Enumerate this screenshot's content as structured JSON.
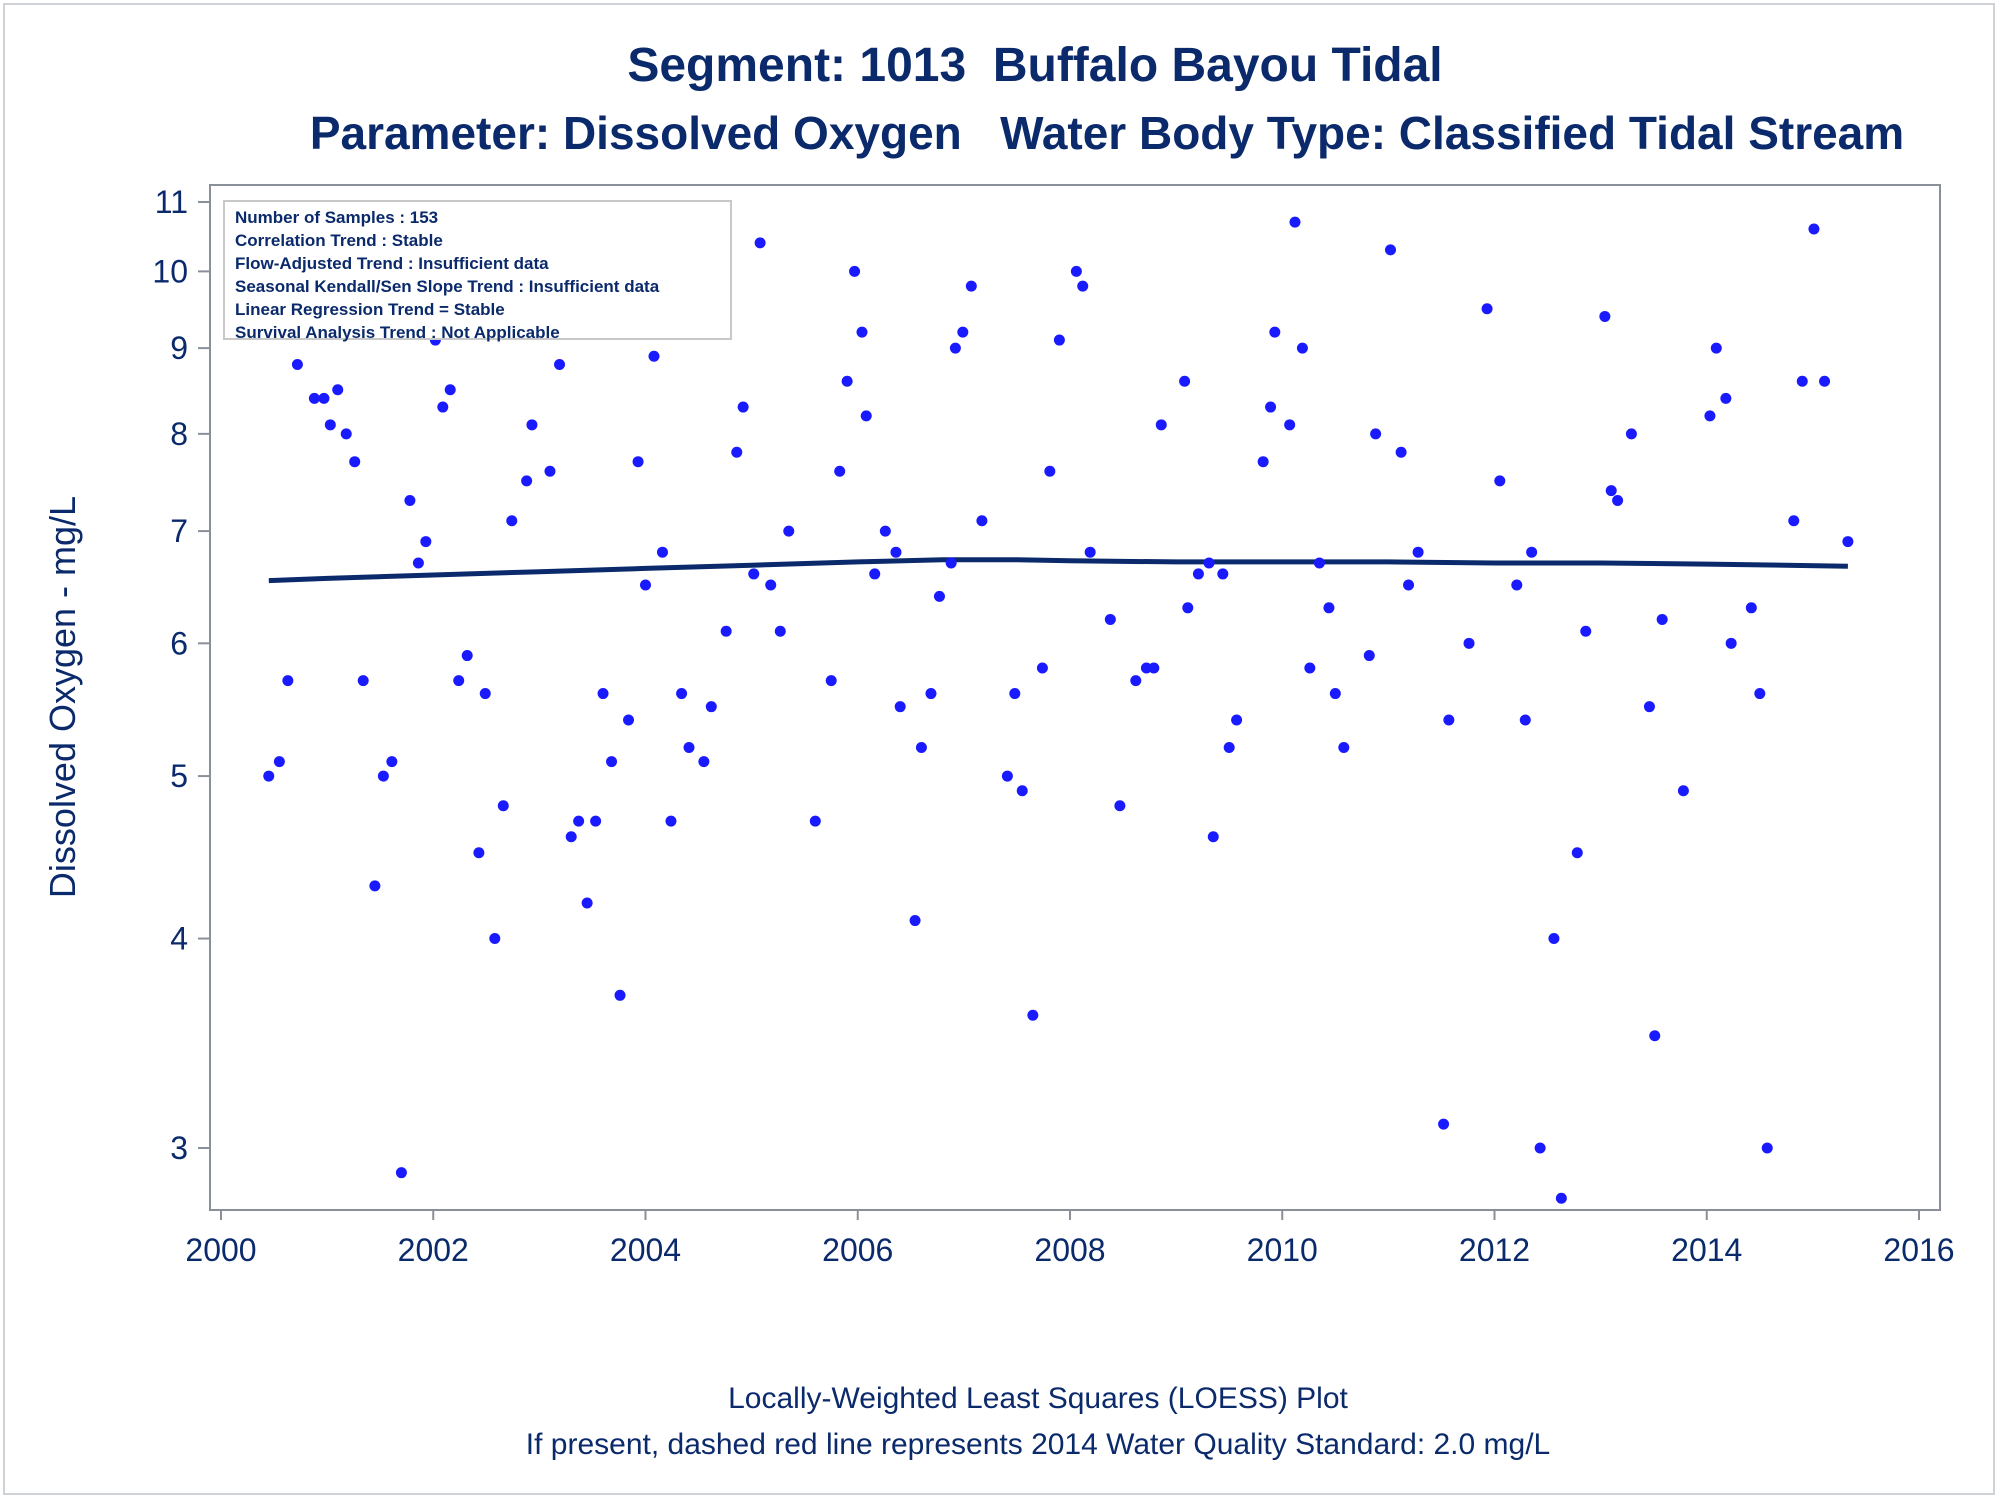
{
  "title": "Segment: 1013  Buffalo Bayou Tidal",
  "subtitle": "Parameter: Dissolved Oxygen   Water Body Type: Classified Tidal Stream",
  "footer": {
    "line1": "Locally-Weighted Least Squares (LOESS) Plot",
    "line2": "If present, dashed red line represents 2014 Water Quality Standard: 2.0 mg/L"
  },
  "stats": [
    "Number of Samples : 153",
    "Correlation Trend : Stable",
    "Flow-Adjusted Trend : Insufficient data",
    "Seasonal Kendall/Sen Slope Trend : Insufficient data",
    "Linear Regression Trend = Stable",
    "Survival Analysis Trend : Not Applicable"
  ],
  "colors": {
    "text": "#0b2a6b",
    "points": "#1a1aff",
    "loess": "#0b2a6b",
    "axis": "#8a9099"
  },
  "chart_data": {
    "type": "scatter",
    "ylabel": "Dissolved Oxygen - mg/L",
    "xlabel": "",
    "y_scale": "log",
    "xlim": [
      2000,
      2016
    ],
    "ylim": [
      2.8,
      11
    ],
    "x_ticks": [
      2000,
      2002,
      2004,
      2006,
      2008,
      2010,
      2012,
      2014,
      2016
    ],
    "y_ticks": [
      3,
      4,
      5,
      6,
      7,
      8,
      9,
      10,
      11
    ],
    "grid": false,
    "series": [
      {
        "type": "scatter",
        "points": [
          [
            2000.45,
            5.0
          ],
          [
            2000.55,
            5.1
          ],
          [
            2000.63,
            5.7
          ],
          [
            2000.72,
            8.8
          ],
          [
            2000.78,
            10.0
          ],
          [
            2000.88,
            8.4
          ],
          [
            2000.97,
            8.4
          ],
          [
            2001.03,
            8.1
          ],
          [
            2001.1,
            8.5
          ],
          [
            2001.18,
            8.0
          ],
          [
            2001.26,
            7.7
          ],
          [
            2001.34,
            5.7
          ],
          [
            2001.45,
            4.3
          ],
          [
            2001.53,
            5.0
          ],
          [
            2001.61,
            5.1
          ],
          [
            2001.7,
            2.9
          ],
          [
            2001.78,
            7.3
          ],
          [
            2001.86,
            6.7
          ],
          [
            2001.93,
            6.9
          ],
          [
            2002.02,
            9.1
          ],
          [
            2002.09,
            8.3
          ],
          [
            2002.16,
            8.5
          ],
          [
            2002.24,
            5.7
          ],
          [
            2002.32,
            5.9
          ],
          [
            2002.43,
            4.5
          ],
          [
            2002.49,
            5.6
          ],
          [
            2002.58,
            4.0
          ],
          [
            2002.66,
            4.8
          ],
          [
            2002.74,
            7.1
          ],
          [
            2002.88,
            7.5
          ],
          [
            2002.93,
            8.1
          ],
          [
            2003.05,
            9.4
          ],
          [
            2003.1,
            7.6
          ],
          [
            2003.19,
            8.8
          ],
          [
            2003.3,
            4.6
          ],
          [
            2003.37,
            4.7
          ],
          [
            2003.45,
            4.2
          ],
          [
            2003.53,
            4.7
          ],
          [
            2003.6,
            5.6
          ],
          [
            2003.68,
            5.1
          ],
          [
            2003.76,
            3.7
          ],
          [
            2003.84,
            5.4
          ],
          [
            2003.93,
            7.7
          ],
          [
            2004.0,
            6.5
          ],
          [
            2004.08,
            8.9
          ],
          [
            2004.16,
            6.8
          ],
          [
            2004.24,
            4.7
          ],
          [
            2004.34,
            5.6
          ],
          [
            2004.41,
            5.2
          ],
          [
            2004.55,
            5.1
          ],
          [
            2004.62,
            5.5
          ],
          [
            2004.76,
            6.1
          ],
          [
            2004.86,
            7.8
          ],
          [
            2004.92,
            8.3
          ],
          [
            2005.02,
            6.6
          ],
          [
            2005.08,
            10.4
          ],
          [
            2005.18,
            6.5
          ],
          [
            2005.27,
            6.1
          ],
          [
            2005.35,
            7.0
          ],
          [
            2005.6,
            4.7
          ],
          [
            2005.75,
            5.7
          ],
          [
            2005.83,
            7.6
          ],
          [
            2005.9,
            8.6
          ],
          [
            2005.97,
            10.0
          ],
          [
            2006.04,
            9.2
          ],
          [
            2006.08,
            8.2
          ],
          [
            2006.16,
            6.6
          ],
          [
            2006.26,
            7.0
          ],
          [
            2006.36,
            6.8
          ],
          [
            2006.4,
            5.5
          ],
          [
            2006.54,
            4.1
          ],
          [
            2006.6,
            5.2
          ],
          [
            2006.69,
            5.6
          ],
          [
            2006.77,
            6.4
          ],
          [
            2006.88,
            6.7
          ],
          [
            2006.92,
            9.0
          ],
          [
            2006.99,
            9.2
          ],
          [
            2007.07,
            9.8
          ],
          [
            2007.17,
            7.1
          ],
          [
            2007.41,
            5.0
          ],
          [
            2007.48,
            5.6
          ],
          [
            2007.55,
            4.9
          ],
          [
            2007.65,
            3.6
          ],
          [
            2007.74,
            5.8
          ],
          [
            2007.81,
            7.6
          ],
          [
            2007.9,
            9.1
          ],
          [
            2008.06,
            10.0
          ],
          [
            2008.12,
            9.8
          ],
          [
            2008.19,
            6.8
          ],
          [
            2008.38,
            6.2
          ],
          [
            2008.47,
            4.8
          ],
          [
            2008.62,
            5.7
          ],
          [
            2008.72,
            5.8
          ],
          [
            2008.79,
            5.8
          ],
          [
            2008.86,
            8.1
          ],
          [
            2009.08,
            8.6
          ],
          [
            2009.11,
            6.3
          ],
          [
            2009.21,
            6.6
          ],
          [
            2009.31,
            6.7
          ],
          [
            2009.35,
            4.6
          ],
          [
            2009.44,
            6.6
          ],
          [
            2009.5,
            5.2
          ],
          [
            2009.57,
            5.4
          ],
          [
            2009.82,
            7.7
          ],
          [
            2009.89,
            8.3
          ],
          [
            2009.93,
            9.2
          ],
          [
            2010.07,
            8.1
          ],
          [
            2010.12,
            10.7
          ],
          [
            2010.19,
            9.0
          ],
          [
            2010.26,
            5.8
          ],
          [
            2010.35,
            6.7
          ],
          [
            2010.44,
            6.3
          ],
          [
            2010.5,
            5.6
          ],
          [
            2010.58,
            5.2
          ],
          [
            2010.82,
            5.9
          ],
          [
            2010.88,
            8.0
          ],
          [
            2011.02,
            10.3
          ],
          [
            2011.12,
            7.8
          ],
          [
            2011.19,
            6.5
          ],
          [
            2011.28,
            6.8
          ],
          [
            2011.52,
            3.1
          ],
          [
            2011.57,
            5.4
          ],
          [
            2011.76,
            6.0
          ],
          [
            2011.93,
            9.5
          ],
          [
            2012.05,
            7.5
          ],
          [
            2012.21,
            6.5
          ],
          [
            2012.29,
            5.4
          ],
          [
            2012.35,
            6.8
          ],
          [
            2012.43,
            3.0
          ],
          [
            2012.56,
            4.0
          ],
          [
            2012.63,
            2.8
          ],
          [
            2012.78,
            4.5
          ],
          [
            2012.86,
            6.1
          ],
          [
            2013.04,
            9.4
          ],
          [
            2013.1,
            7.4
          ],
          [
            2013.16,
            7.3
          ],
          [
            2013.29,
            8.0
          ],
          [
            2013.46,
            5.5
          ],
          [
            2013.51,
            3.5
          ],
          [
            2013.58,
            6.2
          ],
          [
            2013.78,
            4.9
          ],
          [
            2014.03,
            8.2
          ],
          [
            2014.09,
            9.0
          ],
          [
            2014.18,
            8.4
          ],
          [
            2014.23,
            6.0
          ],
          [
            2014.42,
            6.3
          ],
          [
            2014.5,
            5.6
          ],
          [
            2014.57,
            3.0
          ],
          [
            2014.82,
            7.1
          ],
          [
            2014.9,
            8.6
          ],
          [
            2015.01,
            10.6
          ],
          [
            2015.11,
            8.6
          ],
          [
            2015.33,
            6.9
          ]
        ]
      },
      {
        "type": "line",
        "points": [
          [
            2000.45,
            6.54
          ],
          [
            2001.0,
            6.56
          ],
          [
            2002.0,
            6.59
          ],
          [
            2003.0,
            6.62
          ],
          [
            2004.0,
            6.65
          ],
          [
            2005.0,
            6.68
          ],
          [
            2006.0,
            6.71
          ],
          [
            2006.8,
            6.73
          ],
          [
            2007.5,
            6.73
          ],
          [
            2008.0,
            6.72
          ],
          [
            2009.0,
            6.71
          ],
          [
            2010.0,
            6.71
          ],
          [
            2011.0,
            6.71
          ],
          [
            2012.0,
            6.7
          ],
          [
            2013.0,
            6.7
          ],
          [
            2014.0,
            6.69
          ],
          [
            2015.33,
            6.67
          ]
        ]
      }
    ]
  }
}
